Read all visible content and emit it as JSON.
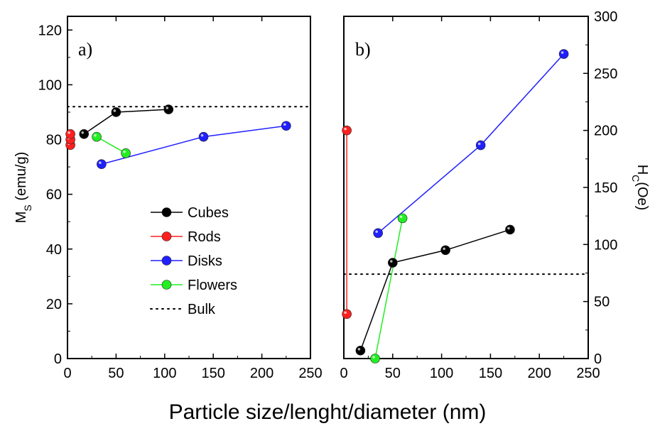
{
  "figure": {
    "xlabel": "Particle size/lenght/diameter (nm)"
  },
  "chart_data": [
    {
      "type": "line",
      "panel": "a)",
      "xlabel": "Particle size/lenght/diameter (nm)",
      "ylabel": "M",
      "ylabel_sub": "S",
      "ylabel_unit": "(emu/g)",
      "xlim": [
        0,
        250
      ],
      "ylim": [
        0,
        125
      ],
      "x_ticks": [
        0,
        50,
        100,
        150,
        200,
        250
      ],
      "y_ticks": [
        0,
        20,
        40,
        60,
        80,
        100,
        120
      ],
      "y_axis_side": "left",
      "legend_placement": "center-left",
      "series": [
        {
          "name": "Cubes",
          "color": "#000000",
          "x": [
            17,
            50,
            104
          ],
          "y": [
            82,
            90,
            91
          ]
        },
        {
          "name": "Rods",
          "color": "#ff2020",
          "x": [
            3,
            3,
            3
          ],
          "y": [
            78,
            80,
            82
          ]
        },
        {
          "name": "Disks",
          "color": "#2020ff",
          "x": [
            35,
            140,
            225
          ],
          "y": [
            71,
            81,
            85
          ]
        },
        {
          "name": "Flowers",
          "color": "#22ee22",
          "x": [
            30,
            60
          ],
          "y": [
            81,
            75
          ]
        }
      ],
      "reference_line": {
        "name": "Bulk",
        "color": "#000000",
        "y": 92
      }
    },
    {
      "type": "line",
      "panel": "b)",
      "xlabel": "Particle size/lenght/diameter (nm)",
      "ylabel": "H",
      "ylabel_sub": "C",
      "ylabel_unit": "(Oe)",
      "xlim": [
        0,
        250
      ],
      "ylim": [
        0,
        300
      ],
      "x_ticks": [
        0,
        50,
        100,
        150,
        200,
        250
      ],
      "y_ticks": [
        0,
        50,
        100,
        150,
        200,
        250,
        300
      ],
      "y_axis_side": "right",
      "series": [
        {
          "name": "Cubes",
          "color": "#000000",
          "x": [
            17,
            50,
            104,
            170
          ],
          "y": [
            7,
            84,
            95,
            113
          ]
        },
        {
          "name": "Rods",
          "color": "#ff2020",
          "x": [
            3,
            3
          ],
          "y": [
            39,
            200
          ]
        },
        {
          "name": "Disks",
          "color": "#2020ff",
          "x": [
            35,
            140,
            225
          ],
          "y": [
            110,
            187,
            267
          ]
        },
        {
          "name": "Flowers",
          "color": "#22ee22",
          "x": [
            32,
            60
          ],
          "y": [
            0,
            123
          ]
        }
      ],
      "reference_line": {
        "name": "Bulk",
        "color": "#000000",
        "y": 74
      }
    }
  ]
}
